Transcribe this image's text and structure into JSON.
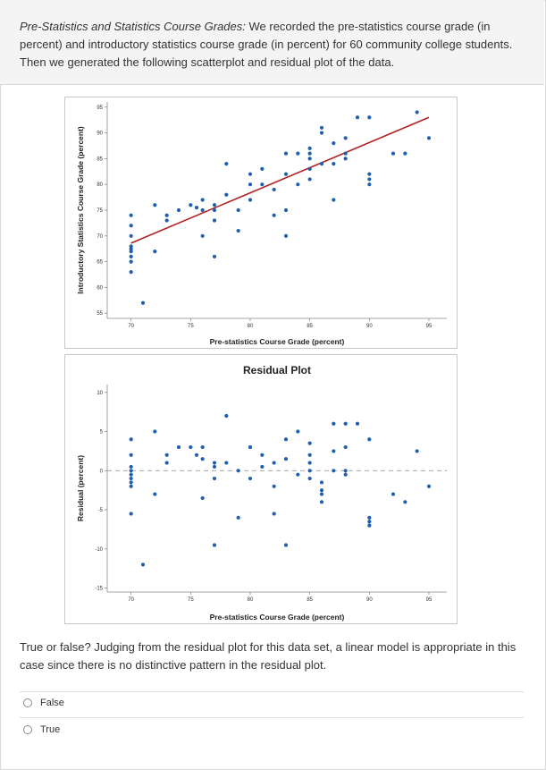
{
  "intro": {
    "title": "Pre-Statistics and Statistics Course Grades:",
    "text": " We recorded the pre-statistics course grade (in percent) and introductory statistics course grade (in percent) for 60 community college students. Then we generated the following scatterplot and residual plot of the data."
  },
  "chart_data": [
    {
      "type": "scatter",
      "title": "",
      "xlabel": "Pre-statistics Course Grade (percent)",
      "ylabel": "Introductory Statistics Course Grade (percent)",
      "xlim": [
        68,
        96.5
      ],
      "ylim": [
        54,
        96
      ],
      "xticks": [
        "70",
        "75",
        "80",
        "85",
        "90",
        "95"
      ],
      "yticks": [
        "55",
        "60",
        "65",
        "70",
        "75",
        "80",
        "85",
        "90",
        "95"
      ],
      "regression_line": {
        "x": [
          70,
          95
        ],
        "y": [
          68.6,
          93.0
        ]
      },
      "line_color": "#b22222",
      "point_color": "#1f5fb0",
      "points": [
        [
          70,
          63
        ],
        [
          70,
          65
        ],
        [
          70,
          66
        ],
        [
          70,
          67
        ],
        [
          70,
          67.5
        ],
        [
          70,
          68
        ],
        [
          70,
          70
        ],
        [
          70,
          72
        ],
        [
          70,
          74
        ],
        [
          71,
          57
        ],
        [
          72,
          67
        ],
        [
          72,
          76
        ],
        [
          73,
          73
        ],
        [
          73,
          74
        ],
        [
          74,
          75
        ],
        [
          75,
          76
        ],
        [
          75.5,
          75.5
        ],
        [
          76,
          75
        ],
        [
          76,
          77
        ],
        [
          76,
          70
        ],
        [
          77,
          73
        ],
        [
          77,
          75
        ],
        [
          77,
          76
        ],
        [
          77,
          66
        ],
        [
          78,
          78
        ],
        [
          78,
          84
        ],
        [
          79,
          75
        ],
        [
          79,
          71
        ],
        [
          80,
          80
        ],
        [
          80,
          82
        ],
        [
          80,
          77
        ],
        [
          81,
          83
        ],
        [
          81,
          80
        ],
        [
          82,
          79
        ],
        [
          82,
          74
        ],
        [
          83,
          75
        ],
        [
          83,
          82
        ],
        [
          83,
          86
        ],
        [
          83,
          70
        ],
        [
          84,
          80
        ],
        [
          84,
          86
        ],
        [
          85,
          81
        ],
        [
          85,
          83
        ],
        [
          85,
          85
        ],
        [
          85,
          86
        ],
        [
          85,
          87
        ],
        [
          86,
          84
        ],
        [
          86,
          90
        ],
        [
          86,
          91
        ],
        [
          87,
          84
        ],
        [
          87,
          88
        ],
        [
          87,
          77
        ],
        [
          88,
          85
        ],
        [
          88,
          86
        ],
        [
          88,
          89
        ],
        [
          89,
          93
        ],
        [
          90,
          80
        ],
        [
          90,
          81
        ],
        [
          90,
          82
        ],
        [
          90,
          93
        ],
        [
          92,
          86
        ],
        [
          93,
          86
        ],
        [
          94,
          94
        ],
        [
          95,
          89
        ]
      ]
    },
    {
      "type": "scatter",
      "title": "Residual Plot",
      "xlabel": "Pre-statistics Course Grade (percent)",
      "ylabel": "Residual (percent)",
      "xlim": [
        68,
        96.5
      ],
      "ylim": [
        -15.5,
        11
      ],
      "xticks": [
        "70",
        "75",
        "80",
        "85",
        "90",
        "95"
      ],
      "yticks": [
        "10",
        "5",
        "0",
        "-5",
        "-10",
        "-15"
      ],
      "zero_line": 0,
      "point_color": "#1f5fb0",
      "points": [
        [
          70,
          -5.5
        ],
        [
          70,
          -1.5
        ],
        [
          70,
          -2
        ],
        [
          70,
          -1
        ],
        [
          70,
          -0.5
        ],
        [
          70,
          0
        ],
        [
          70,
          0.5
        ],
        [
          70,
          2
        ],
        [
          70,
          4
        ],
        [
          71,
          -12
        ],
        [
          72,
          -3
        ],
        [
          72,
          5
        ],
        [
          73,
          1
        ],
        [
          73,
          2
        ],
        [
          74,
          3
        ],
        [
          75,
          3
        ],
        [
          75.5,
          2
        ],
        [
          76,
          1.5
        ],
        [
          76,
          3
        ],
        [
          76,
          -3.5
        ],
        [
          77,
          -1
        ],
        [
          77,
          0.5
        ],
        [
          77,
          1
        ],
        [
          77,
          -9.5
        ],
        [
          78,
          1
        ],
        [
          78,
          7
        ],
        [
          79,
          0
        ],
        [
          79,
          -6
        ],
        [
          80,
          3
        ],
        [
          80,
          -1
        ],
        [
          80,
          3
        ],
        [
          81,
          0.5
        ],
        [
          81,
          2
        ],
        [
          82,
          -5.5
        ],
        [
          82,
          1
        ],
        [
          82,
          -2
        ],
        [
          83,
          1.5
        ],
        [
          83,
          4
        ],
        [
          83,
          -9.5
        ],
        [
          84,
          -0.5
        ],
        [
          84,
          5
        ],
        [
          85,
          -1
        ],
        [
          85,
          0
        ],
        [
          85,
          1
        ],
        [
          85,
          2
        ],
        [
          85,
          3.5
        ],
        [
          86,
          -1.5
        ],
        [
          86,
          -2.5
        ],
        [
          86,
          -3
        ],
        [
          86,
          -4
        ],
        [
          87,
          6
        ],
        [
          87,
          0
        ],
        [
          87,
          2.5
        ],
        [
          88,
          6
        ],
        [
          88,
          -0.5
        ],
        [
          88,
          0
        ],
        [
          88,
          3
        ],
        [
          89,
          6
        ],
        [
          90,
          -6
        ],
        [
          90,
          -6.5
        ],
        [
          90,
          -7
        ],
        [
          90,
          4
        ],
        [
          92,
          -3
        ],
        [
          93,
          -4
        ],
        [
          94,
          2.5
        ],
        [
          95,
          -2
        ]
      ]
    }
  ],
  "question": {
    "text": "True or false? Judging from the residual plot for this data set, a linear model is appropriate in this case since there is no distinctive pattern in the residual plot."
  },
  "options": [
    {
      "label": "False"
    },
    {
      "label": "True"
    }
  ]
}
